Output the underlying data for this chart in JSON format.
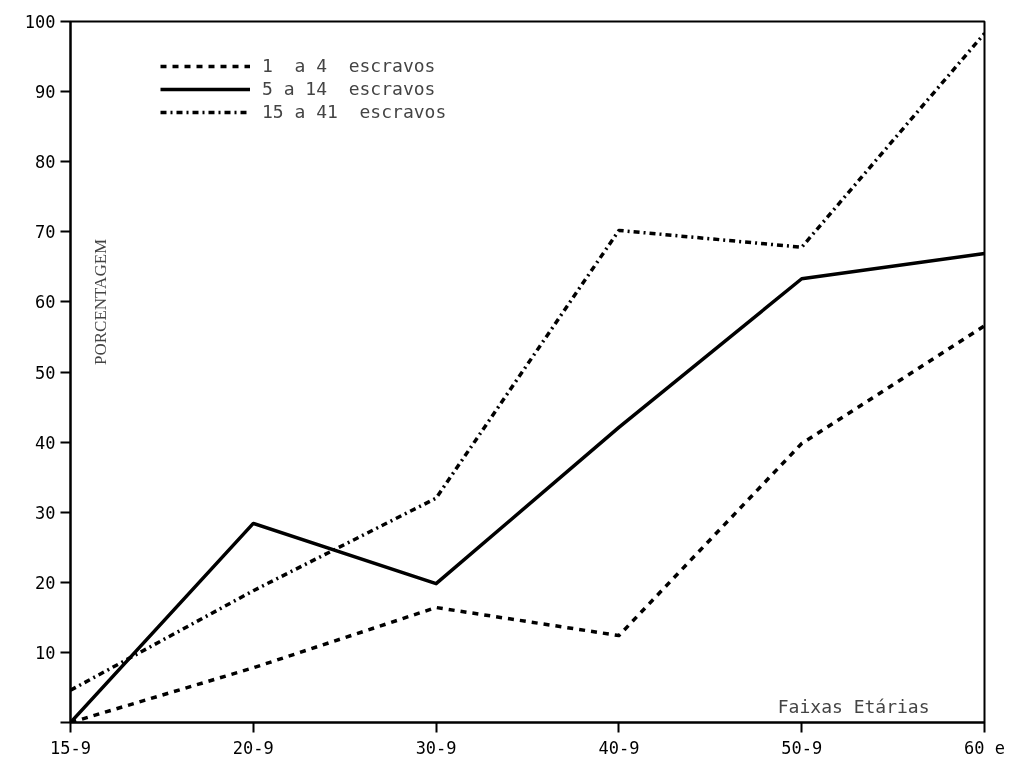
{
  "chart_data": {
    "type": "line",
    "xlabel": "Faixas Etárias",
    "ylabel": "PORCENTAGEM",
    "categories": [
      "15-9",
      "20-9",
      "30-9",
      "40-9",
      "50-9",
      "60 e"
    ],
    "ylim": [
      0,
      100
    ],
    "yticks": [
      {
        "value": 0,
        "label": null
      },
      10,
      20,
      30,
      40,
      50,
      60,
      70,
      80,
      90,
      100
    ],
    "grid": false,
    "legend": "top left",
    "marker": "none",
    "series": [
      {
        "name": "1  a 4  escravos",
        "color": "#000000",
        "line_style": "dashed",
        "values": [
          0,
          7.8,
          16.4,
          12.4,
          39.8,
          56.6
        ]
      },
      {
        "name": "5 a 14  escravos",
        "color": "#000000",
        "line_style": "solid",
        "values": [
          0,
          28.4,
          19.8,
          42.1,
          63.3,
          66.9
        ]
      },
      {
        "name": "15 a 41  escravos",
        "color": "#000000",
        "line_style": "dashdot",
        "values": [
          4.6,
          18.8,
          32,
          70.2,
          67.8,
          98.3
        ]
      }
    ]
  }
}
